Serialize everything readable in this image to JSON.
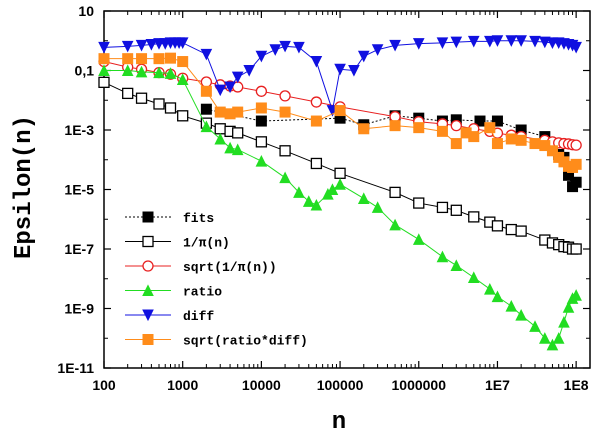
{
  "chart_data": {
    "type": "line",
    "xlabel": "n",
    "ylabel": "Epsilon(n)",
    "xscale": "log",
    "yscale": "log",
    "xlim": [
      100,
      150000000
    ],
    "ylim": [
      1e-11,
      10
    ],
    "grid": false,
    "legend_position": "lower-left",
    "xticks": [
      {
        "value": 100,
        "label": "100"
      },
      {
        "value": 1000,
        "label": "1000"
      },
      {
        "value": 10000,
        "label": "10000"
      },
      {
        "value": 100000,
        "label": "100000"
      },
      {
        "value": 1000000,
        "label": "1000000"
      },
      {
        "value": 10000000,
        "label": "1E7"
      },
      {
        "value": 100000000,
        "label": "1E8"
      }
    ],
    "yticks": [
      {
        "value": 10,
        "label": "10"
      },
      {
        "value": 0.1,
        "label": "0,1"
      },
      {
        "value": 0.001,
        "label": "1E-3"
      },
      {
        "value": 1e-05,
        "label": "1E-5"
      },
      {
        "value": 1e-07,
        "label": "1E-7"
      },
      {
        "value": 1e-09,
        "label": "1E-9"
      },
      {
        "value": 1e-11,
        "label": "1E-11"
      }
    ],
    "series": [
      {
        "name": "fits",
        "color": "#000000",
        "marker": "square-filled",
        "line": "dotted",
        "points": [
          [
            2000,
            0.005
          ],
          [
            10000,
            0.002
          ],
          [
            100000,
            0.0025
          ],
          [
            200000,
            0.0015
          ],
          [
            500000,
            0.003
          ],
          [
            1000000,
            0.0025
          ],
          [
            2000000,
            0.002
          ],
          [
            3000000,
            0.0022
          ],
          [
            6000000,
            0.002
          ],
          [
            10000000,
            0.002
          ],
          [
            20000000,
            0.001
          ],
          [
            40000000,
            0.0006
          ],
          [
            50000000,
            0.0003
          ],
          [
            60000000,
            0.00015
          ],
          [
            70000000,
            0.00012
          ],
          [
            80000000,
            3e-05
          ],
          [
            90000000,
            1.25e-05
          ],
          [
            100000000,
            1.75e-05
          ]
        ]
      },
      {
        "name": "1/π(n)",
        "color": "#000000",
        "marker": "square-open",
        "line": "solid",
        "points": [
          [
            100,
            0.04
          ],
          [
            200,
            0.017
          ],
          [
            300,
            0.0117
          ],
          [
            500,
            0.0075
          ],
          [
            700,
            0.0055
          ],
          [
            1000,
            0.003
          ],
          [
            2000,
            0.0017
          ],
          [
            3000,
            0.0011
          ],
          [
            4000,
            0.0009
          ],
          [
            5000,
            0.0008
          ],
          [
            10000,
            0.0004
          ],
          [
            20000,
            0.0002
          ],
          [
            50000,
            7.5e-05
          ],
          [
            100000,
            3.5e-05
          ],
          [
            500000,
            8e-06
          ],
          [
            1000000,
            3.5e-06
          ],
          [
            2000000,
            2.5e-06
          ],
          [
            3000000,
            2e-06
          ],
          [
            5000000,
            1.2e-06
          ],
          [
            8000000,
            8e-07
          ],
          [
            10000000,
            6e-07
          ],
          [
            15000000,
            4.5e-07
          ],
          [
            20000000,
            4e-07
          ],
          [
            40000000,
            2e-07
          ],
          [
            50000000,
            1.6e-07
          ],
          [
            60000000,
            1.4e-07
          ],
          [
            70000000,
            1.2e-07
          ],
          [
            80000000,
            1.15e-07
          ],
          [
            90000000,
            1e-07
          ],
          [
            100000000,
            1e-07
          ]
        ]
      },
      {
        "name": "sqrt(1/π(n))",
        "color": "#e82020",
        "marker": "circle-open",
        "line": "solid",
        "points": [
          [
            100,
            0.2
          ],
          [
            200,
            0.13
          ],
          [
            300,
            0.11
          ],
          [
            500,
            0.085
          ],
          [
            700,
            0.075
          ],
          [
            1000,
            0.055
          ],
          [
            2000,
            0.041
          ],
          [
            3000,
            0.033
          ],
          [
            4000,
            0.03
          ],
          [
            5000,
            0.028
          ],
          [
            10000,
            0.02
          ],
          [
            20000,
            0.014
          ],
          [
            50000,
            0.0087
          ],
          [
            100000,
            0.006
          ],
          [
            500000,
            0.0028
          ],
          [
            1000000,
            0.0019
          ],
          [
            2000000,
            0.0016
          ],
          [
            3000000,
            0.0014
          ],
          [
            5000000,
            0.0011
          ],
          [
            8000000,
            0.0009
          ],
          [
            10000000,
            0.00078
          ],
          [
            15000000,
            0.00067
          ],
          [
            20000000,
            0.0006
          ],
          [
            40000000,
            0.00045
          ],
          [
            50000000,
            0.0004
          ],
          [
            60000000,
            0.00037
          ],
          [
            70000000,
            0.00035
          ],
          [
            80000000,
            0.00034
          ],
          [
            90000000,
            0.00032
          ],
          [
            100000000,
            0.00031
          ]
        ]
      },
      {
        "name": "ratio",
        "color": "#22dd22",
        "marker": "triangle-up-filled",
        "line": "solid",
        "points": [
          [
            100,
            0.1
          ],
          [
            200,
            0.1
          ],
          [
            300,
            0.09
          ],
          [
            500,
            0.085
          ],
          [
            700,
            0.08
          ],
          [
            1000,
            0.05
          ],
          [
            2000,
            0.0013
          ],
          [
            3000,
            0.0005
          ],
          [
            4000,
            0.00025
          ],
          [
            5000,
            0.00022
          ],
          [
            10000,
            9e-05
          ],
          [
            20000,
            2.5e-05
          ],
          [
            30000,
            8e-06
          ],
          [
            40000,
            4e-06
          ],
          [
            50000,
            3e-06
          ],
          [
            70000,
            7e-06
          ],
          [
            80000,
            1e-05
          ],
          [
            100000,
            1.5e-05
          ],
          [
            200000,
            5e-06
          ],
          [
            300000,
            2.5e-06
          ],
          [
            500000,
            6.5e-07
          ],
          [
            1000000,
            2.1e-07
          ],
          [
            2000000,
            5.5e-08
          ],
          [
            3000000,
            2.8e-08
          ],
          [
            5000000,
            1.1e-08
          ],
          [
            8000000,
            4.5e-09
          ],
          [
            10000000,
            2.5e-09
          ],
          [
            15000000,
            1.2e-09
          ],
          [
            20000000,
            6e-10
          ],
          [
            30000000,
            2.5e-10
          ],
          [
            40000000,
            1e-10
          ],
          [
            50000000,
            6e-11
          ],
          [
            60000000,
            1e-10
          ],
          [
            70000000,
            3.5e-10
          ],
          [
            80000000,
            1.1e-09
          ],
          [
            90000000,
            2.2e-09
          ],
          [
            100000000,
            2.8e-09
          ]
        ]
      },
      {
        "name": "diff",
        "color": "#1010e0",
        "marker": "triangle-down-filled",
        "line": "solid",
        "points": [
          [
            100,
            0.6
          ],
          [
            200,
            0.65
          ],
          [
            300,
            0.7
          ],
          [
            400,
            0.75
          ],
          [
            500,
            0.8
          ],
          [
            600,
            0.8
          ],
          [
            700,
            0.85
          ],
          [
            800,
            0.85
          ],
          [
            900,
            0.85
          ],
          [
            1000,
            0.85
          ],
          [
            2000,
            0.35
          ],
          [
            3000,
            0.022
          ],
          [
            4000,
            0.028
          ],
          [
            5000,
            0.06
          ],
          [
            7000,
            0.1
          ],
          [
            10000,
            0.3
          ],
          [
            15000,
            0.5
          ],
          [
            20000,
            0.65
          ],
          [
            30000,
            0.6
          ],
          [
            50000,
            0.2
          ],
          [
            80000,
            0.0045
          ],
          [
            100000,
            0.11
          ],
          [
            150000,
            0.1
          ],
          [
            200000,
            0.3
          ],
          [
            300000,
            0.5
          ],
          [
            500000,
            0.7
          ],
          [
            1000000,
            0.8
          ],
          [
            2000000,
            0.85
          ],
          [
            3000000,
            0.9
          ],
          [
            5000000,
            0.95
          ],
          [
            8000000,
            0.95
          ],
          [
            10000000,
            1.0
          ],
          [
            15000000,
            1.0
          ],
          [
            20000000,
            1.0
          ],
          [
            30000000,
            0.95
          ],
          [
            40000000,
            0.9
          ],
          [
            50000000,
            0.85
          ],
          [
            60000000,
            0.85
          ],
          [
            70000000,
            0.8
          ],
          [
            80000000,
            0.75
          ],
          [
            90000000,
            0.7
          ],
          [
            100000000,
            0.6
          ]
        ]
      },
      {
        "name": "sqrt(ratio*diff)",
        "color": "#ff8c1a",
        "marker": "square-filled",
        "line": "solid",
        "points": [
          [
            100,
            0.25
          ],
          [
            200,
            0.25
          ],
          [
            300,
            0.25
          ],
          [
            500,
            0.25
          ],
          [
            700,
            0.26
          ],
          [
            1000,
            0.2
          ],
          [
            2000,
            0.02
          ],
          [
            3000,
            0.004
          ],
          [
            4000,
            0.0035
          ],
          [
            5000,
            0.004
          ],
          [
            10000,
            0.0055
          ],
          [
            20000,
            0.004
          ],
          [
            50000,
            0.002
          ],
          [
            100000,
            0.0045
          ],
          [
            200000,
            0.0011
          ],
          [
            500000,
            0.0014
          ],
          [
            1000000,
            0.0012
          ],
          [
            2000000,
            0.0009
          ],
          [
            3000000,
            0.00035
          ],
          [
            4000000,
            0.0008
          ],
          [
            5000000,
            0.0006
          ],
          [
            8000000,
            0.0012
          ],
          [
            10000000,
            0.00035
          ],
          [
            15000000,
            0.0005
          ],
          [
            20000000,
            0.00045
          ],
          [
            30000000,
            0.00035
          ],
          [
            40000000,
            0.0003
          ],
          [
            50000000,
            0.0002
          ],
          [
            60000000,
            0.00012
          ],
          [
            70000000,
            8.5e-05
          ],
          [
            80000000,
            6e-05
          ],
          [
            90000000,
            5.5e-05
          ],
          [
            100000000,
            7e-05
          ]
        ]
      }
    ]
  }
}
